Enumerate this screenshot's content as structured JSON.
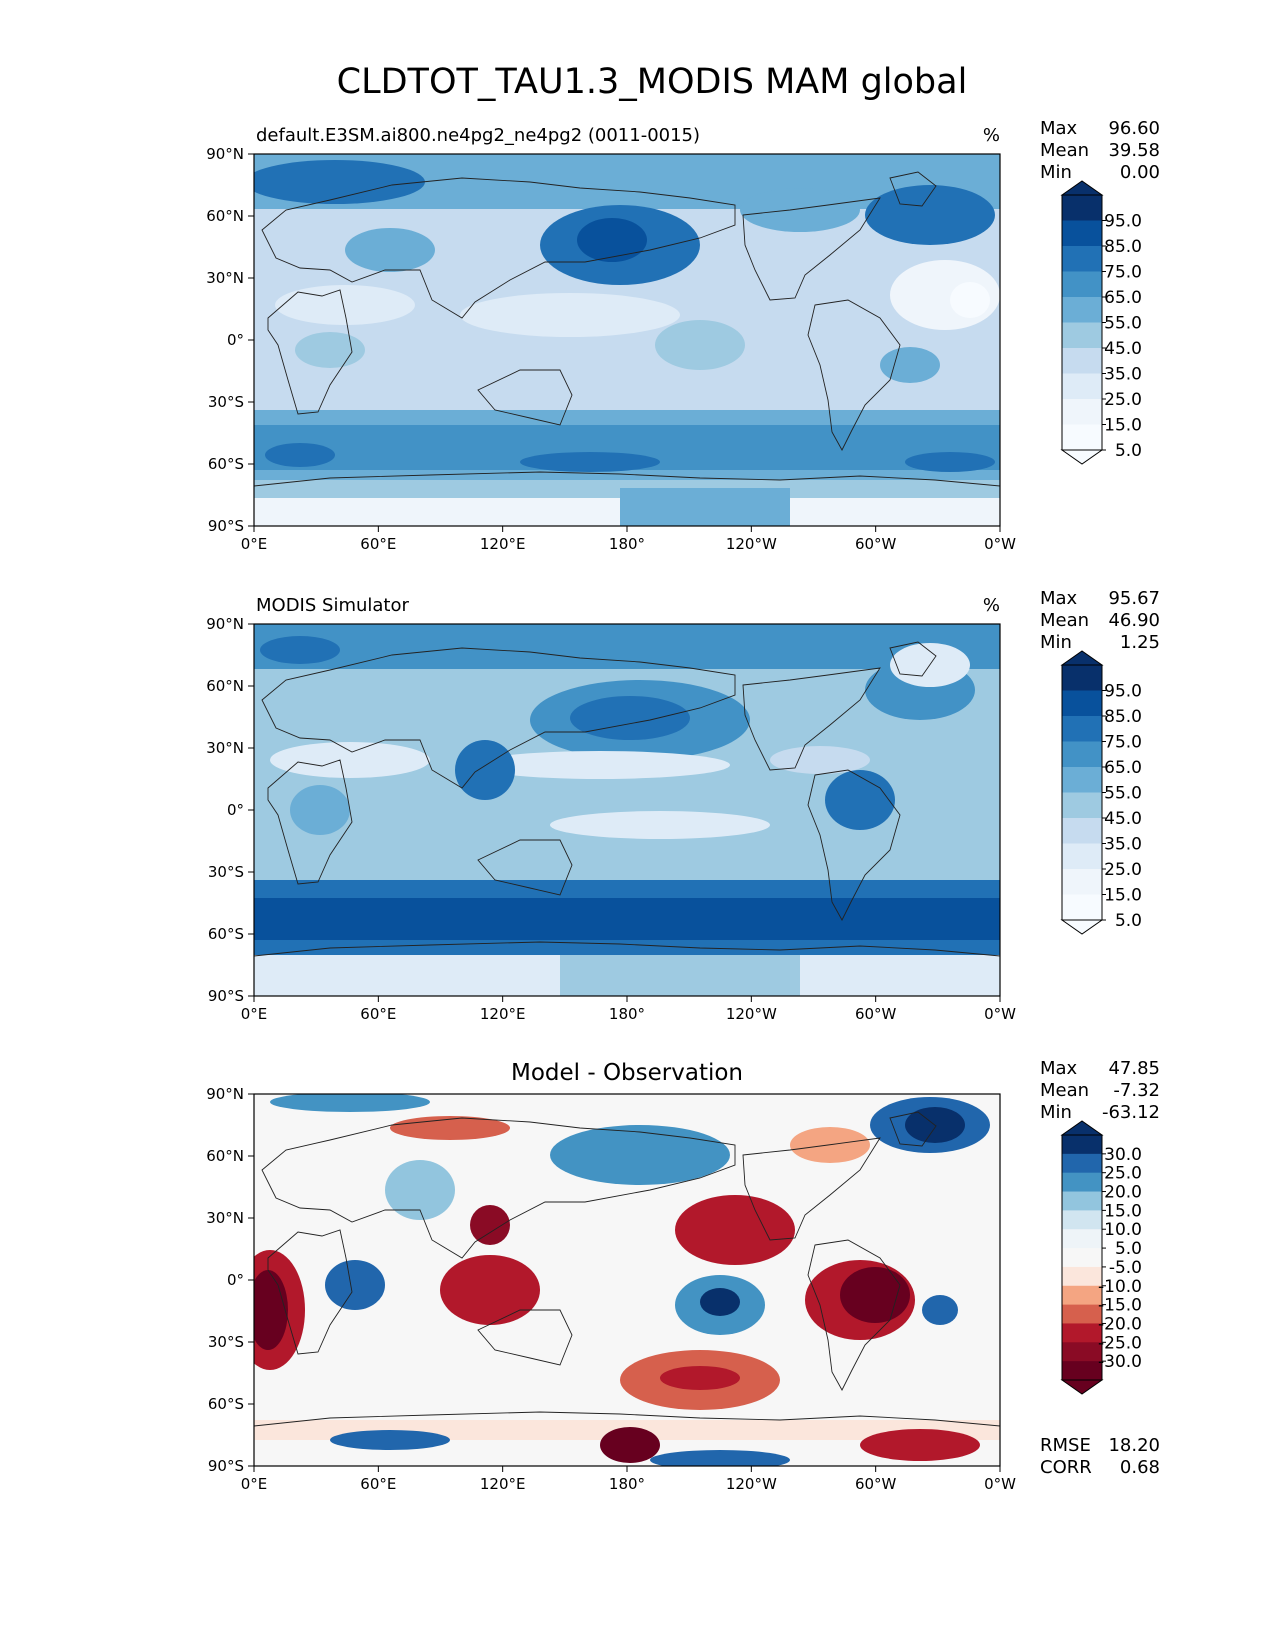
{
  "title": "CLDTOT_TAU1.3_MODIS MAM global",
  "panels": [
    {
      "id": "test",
      "left_title": "default.E3SM.ai800.ne4pg2_ne4pg2 (0011-0015)",
      "center_title": "",
      "units": "%",
      "stats": [
        {
          "label": "Max",
          "value": "96.60"
        },
        {
          "label": "Mean",
          "value": "39.58"
        },
        {
          "label": "Min",
          "value": "0.00"
        }
      ],
      "colorbar": {
        "ticks": [
          "95.0",
          "85.0",
          "75.0",
          "65.0",
          "55.0",
          "45.0",
          "35.0",
          "25.0",
          "15.0",
          "5.0"
        ],
        "colors": [
          "#08306b",
          "#08519c",
          "#2171b5",
          "#4292c6",
          "#6baed6",
          "#9ecae1",
          "#c6dbef",
          "#deebf7",
          "#eff5fb",
          "#f7fbff"
        ]
      },
      "extra_stats": []
    },
    {
      "id": "reference",
      "left_title": "MODIS Simulator",
      "center_title": "",
      "units": "%",
      "stats": [
        {
          "label": "Max",
          "value": "95.67"
        },
        {
          "label": "Mean",
          "value": "46.90"
        },
        {
          "label": "Min",
          "value": "1.25"
        }
      ],
      "colorbar": {
        "ticks": [
          "95.0",
          "85.0",
          "75.0",
          "65.0",
          "55.0",
          "45.0",
          "35.0",
          "25.0",
          "15.0",
          "5.0"
        ],
        "colors": [
          "#08306b",
          "#08519c",
          "#2171b5",
          "#4292c6",
          "#6baed6",
          "#9ecae1",
          "#c6dbef",
          "#deebf7",
          "#eff5fb",
          "#f7fbff"
        ]
      },
      "extra_stats": []
    },
    {
      "id": "diff",
      "left_title": "",
      "center_title": "Model - Observation",
      "units": "",
      "stats": [
        {
          "label": "Max",
          "value": "47.85"
        },
        {
          "label": "Mean",
          "value": "-7.32"
        },
        {
          "label": "Min",
          "value": "-63.12"
        }
      ],
      "colorbar": {
        "ticks": [
          "30.0",
          "25.0",
          "20.0",
          "15.0",
          "10.0",
          "5.0",
          "-5.0",
          "-10.0",
          "-15.0",
          "-20.0",
          "-25.0",
          "-30.0"
        ],
        "colors": [
          "#08306b",
          "#2166ac",
          "#4393c3",
          "#92c5de",
          "#d1e5f0",
          "#eef4f8",
          "#f7f7f7",
          "#fbe6dc",
          "#f4a582",
          "#d6604d",
          "#b2182b",
          "#8a0b25",
          "#67001f"
        ]
      },
      "extra_stats": [
        {
          "label": "RMSE",
          "value": "18.20"
        },
        {
          "label": "CORR",
          "value": "0.68"
        }
      ]
    }
  ],
  "lat_ticks": [
    "90°N",
    "60°N",
    "30°N",
    "0°",
    "30°S",
    "60°S",
    "90°S"
  ],
  "lon_ticks": [
    "0°E",
    "60°E",
    "120°E",
    "180°",
    "120°W",
    "60°W",
    "0°W"
  ]
}
